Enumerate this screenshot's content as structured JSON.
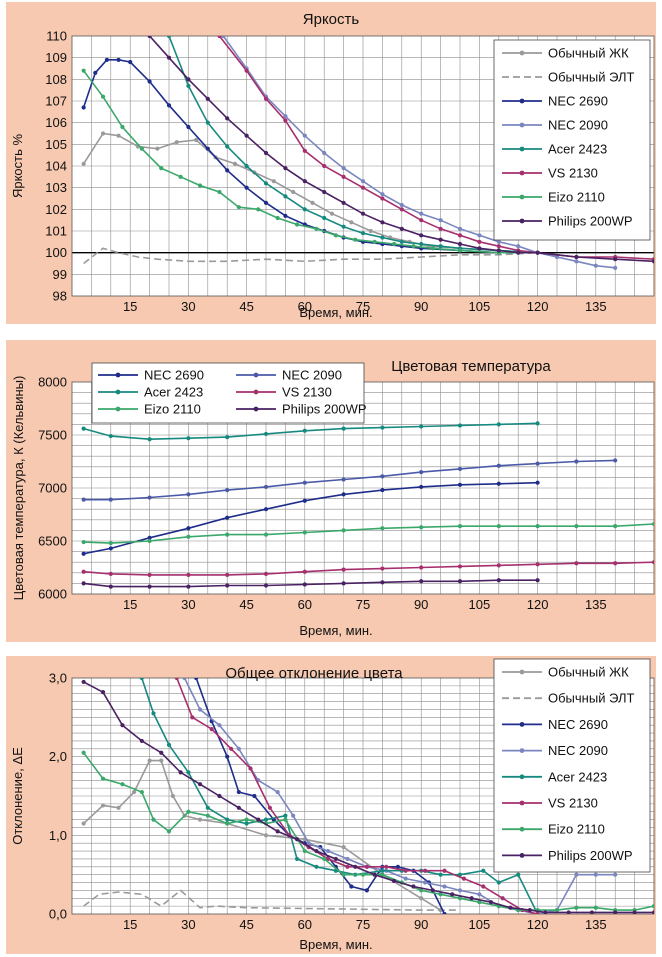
{
  "chart_data": [
    {
      "type": "line",
      "title": "Яркость",
      "xlabel": "Время, мин.",
      "ylabel": "Яркость %",
      "xlim": [
        0,
        150
      ],
      "ylim": [
        98,
        110
      ],
      "xticks": [
        "15",
        "30",
        "45",
        "60",
        "75",
        "90",
        "105",
        "120",
        "135"
      ],
      "yticks": [
        "98",
        "99",
        "100",
        "101",
        "102",
        "103",
        "104",
        "105",
        "106",
        "107",
        "108",
        "109",
        "110"
      ],
      "reference_line": 100,
      "legend_position": "top-right",
      "series": [
        {
          "name": "Обычный ЖК",
          "color": "#9a9a9a",
          "dash": false,
          "x": [
            3,
            8,
            12,
            17,
            22,
            27,
            32,
            37,
            42,
            47,
            52,
            57,
            62,
            67,
            72,
            77,
            82,
            87,
            92,
            100,
            110,
            120
          ],
          "y": [
            104.1,
            105.5,
            105.4,
            104.9,
            104.8,
            105.1,
            105.2,
            104.4,
            104.1,
            103.7,
            103.3,
            102.8,
            102.3,
            101.8,
            101.4,
            101.0,
            100.7,
            100.5,
            100.3,
            100.2,
            100.1,
            100.0
          ]
        },
        {
          "name": "Обычный ЭЛТ",
          "color": "#9a9a9a",
          "dash": true,
          "x": [
            3,
            8,
            12,
            17,
            22,
            30,
            40,
            50,
            60,
            70,
            80,
            90,
            100,
            110,
            120
          ],
          "y": [
            99.5,
            100.2,
            100.0,
            99.8,
            99.7,
            99.6,
            99.6,
            99.7,
            99.6,
            99.7,
            99.7,
            99.8,
            99.9,
            99.9,
            100.0
          ]
        },
        {
          "name": "NEC 2690",
          "color": "#1f2d8a",
          "dash": false,
          "x": [
            3,
            6,
            9,
            12,
            15,
            20,
            25,
            30,
            35,
            40,
            45,
            50,
            55,
            60,
            65,
            70,
            75,
            80,
            85,
            90,
            100,
            110,
            120
          ],
          "y": [
            106.7,
            108.3,
            108.9,
            108.9,
            108.8,
            107.9,
            106.8,
            105.8,
            104.8,
            103.8,
            103.0,
            102.3,
            101.7,
            101.3,
            101.0,
            100.7,
            100.5,
            100.4,
            100.3,
            100.2,
            100.1,
            100.0,
            100.0
          ]
        },
        {
          "name": "NEC 2090",
          "color": "#7b86c0",
          "dash": false,
          "x": [
            39,
            45,
            50,
            55,
            60,
            65,
            70,
            75,
            80,
            85,
            90,
            95,
            100,
            105,
            110,
            115,
            120,
            125,
            130,
            135,
            140
          ],
          "y": [
            110,
            108.5,
            107.2,
            106.3,
            105.4,
            104.6,
            103.9,
            103.3,
            102.7,
            102.2,
            101.8,
            101.5,
            101.1,
            100.8,
            100.5,
            100.3,
            100.0,
            99.8,
            99.6,
            99.4,
            99.3
          ]
        },
        {
          "name": "Acer 2423",
          "color": "#178a80",
          "dash": false,
          "x": [
            25,
            30,
            35,
            40,
            45,
            50,
            55,
            60,
            65,
            70,
            75,
            80,
            85,
            90,
            95,
            100,
            110,
            120
          ],
          "y": [
            110,
            107.7,
            106.0,
            104.9,
            104.0,
            103.2,
            102.6,
            102.0,
            101.6,
            101.2,
            100.9,
            100.7,
            100.5,
            100.4,
            100.3,
            100.2,
            100.1,
            100.0
          ]
        },
        {
          "name": "VS 2130",
          "color": "#a62f6e",
          "dash": false,
          "x": [
            38,
            45,
            50,
            55,
            60,
            65,
            70,
            75,
            80,
            85,
            90,
            95,
            100,
            105,
            110,
            115,
            120,
            130,
            140,
            150
          ],
          "y": [
            110,
            108.4,
            107.1,
            106.1,
            104.7,
            104.0,
            103.5,
            103.0,
            102.5,
            102.0,
            101.5,
            101.1,
            100.8,
            100.5,
            100.3,
            100.1,
            100.0,
            99.8,
            99.8,
            99.7
          ]
        },
        {
          "name": "Eizo 2110",
          "color": "#3aa86a",
          "dash": false,
          "x": [
            3,
            8,
            13,
            18,
            23,
            28,
            33,
            38,
            43,
            48,
            53,
            58,
            63,
            68,
            73,
            78,
            83,
            88,
            93,
            100,
            110,
            120
          ],
          "y": [
            108.4,
            107.2,
            105.8,
            104.8,
            103.9,
            103.5,
            103.1,
            102.8,
            102.1,
            102.0,
            101.6,
            101.3,
            101.1,
            100.8,
            100.6,
            100.5,
            100.4,
            100.3,
            100.2,
            100.1,
            100.0,
            100.0
          ]
        },
        {
          "name": "Philips 200WP",
          "color": "#4a2163",
          "dash": false,
          "x": [
            20,
            25,
            30,
            35,
            40,
            45,
            50,
            55,
            60,
            65,
            70,
            75,
            80,
            85,
            90,
            95,
            100,
            105,
            110,
            115,
            120,
            130,
            140,
            150
          ],
          "y": [
            110,
            109.0,
            108.0,
            107.1,
            106.2,
            105.4,
            104.6,
            103.9,
            103.3,
            102.8,
            102.3,
            101.8,
            101.4,
            101.1,
            100.8,
            100.6,
            100.4,
            100.2,
            100.1,
            100.0,
            100.0,
            99.8,
            99.7,
            99.6
          ]
        }
      ]
    },
    {
      "type": "line",
      "title": "Цветовая температура",
      "xlabel": "Время, мин.",
      "ylabel": "Цветовая температура, К (Кельвины)",
      "xlim": [
        0,
        150
      ],
      "ylim": [
        6000,
        8000
      ],
      "xticks": [
        "15",
        "30",
        "45",
        "60",
        "75",
        "90",
        "105",
        "120",
        "135"
      ],
      "yticks": [
        "6000",
        "6500",
        "7000",
        "7500",
        "8000"
      ],
      "legend_position": "top-left",
      "series": [
        {
          "name": "NEC 2690",
          "color": "#1f2d8a",
          "x": [
            3,
            10,
            20,
            30,
            40,
            50,
            60,
            70,
            80,
            90,
            100,
            110,
            120
          ],
          "y": [
            6380,
            6430,
            6530,
            6620,
            6720,
            6800,
            6880,
            6940,
            6980,
            7010,
            7030,
            7040,
            7050
          ]
        },
        {
          "name": "NEC 2090",
          "color": "#4b5aa8",
          "x": [
            3,
            10,
            20,
            30,
            40,
            50,
            60,
            70,
            80,
            90,
            100,
            110,
            120,
            130,
            140
          ],
          "y": [
            6890,
            6890,
            6910,
            6940,
            6980,
            7010,
            7050,
            7080,
            7110,
            7150,
            7180,
            7210,
            7230,
            7250,
            7260
          ]
        },
        {
          "name": "Acer 2423",
          "color": "#178a80",
          "x": [
            3,
            10,
            20,
            30,
            40,
            50,
            60,
            70,
            80,
            90,
            100,
            110,
            120
          ],
          "y": [
            7560,
            7490,
            7460,
            7470,
            7480,
            7510,
            7540,
            7560,
            7570,
            7580,
            7590,
            7600,
            7610
          ]
        },
        {
          "name": "VS 2130",
          "color": "#a62f6e",
          "x": [
            3,
            10,
            20,
            30,
            40,
            50,
            60,
            70,
            80,
            90,
            100,
            110,
            120,
            130,
            140,
            150
          ],
          "y": [
            6210,
            6190,
            6180,
            6180,
            6180,
            6190,
            6210,
            6230,
            6240,
            6250,
            6260,
            6270,
            6280,
            6290,
            6290,
            6300
          ]
        },
        {
          "name": "Eizo 2110",
          "color": "#3aa86a",
          "x": [
            3,
            10,
            20,
            30,
            40,
            50,
            60,
            70,
            80,
            90,
            100,
            110,
            120,
            130,
            140,
            150
          ],
          "y": [
            6490,
            6480,
            6500,
            6540,
            6560,
            6560,
            6580,
            6600,
            6620,
            6630,
            6640,
            6640,
            6640,
            6640,
            6640,
            6660
          ]
        },
        {
          "name": "Philips 200WP",
          "color": "#4a2163",
          "x": [
            3,
            10,
            20,
            30,
            40,
            50,
            60,
            70,
            80,
            90,
            100,
            110,
            120
          ],
          "y": [
            6100,
            6070,
            6070,
            6070,
            6080,
            6080,
            6090,
            6100,
            6110,
            6120,
            6120,
            6130,
            6130
          ]
        }
      ]
    },
    {
      "type": "line",
      "title": "Общее отклонение цвета",
      "xlabel": "Время, мин.",
      "ylabel": "Отклонение, ΔE",
      "xlim": [
        0,
        150
      ],
      "ylim": [
        0,
        3
      ],
      "xticks": [
        "15",
        "30",
        "45",
        "60",
        "75",
        "90",
        "105",
        "120",
        "135"
      ],
      "yticks": [
        "0,0",
        "1,0",
        "2,0",
        "3,0"
      ],
      "legend_position": "top-right",
      "series": [
        {
          "name": "Обычный ЖК",
          "color": "#9a9a9a",
          "dash": false,
          "x": [
            3,
            8,
            12,
            16,
            20,
            23,
            26,
            29,
            33,
            40,
            50,
            60,
            70,
            80,
            90,
            95
          ],
          "y": [
            1.15,
            1.38,
            1.35,
            1.55,
            1.95,
            1.95,
            1.5,
            1.25,
            1.2,
            1.15,
            1.0,
            0.95,
            0.85,
            0.5,
            0.2,
            0.05
          ]
        },
        {
          "name": "Обычный ЭЛТ",
          "color": "#9a9a9a",
          "dash": true,
          "x": [
            3,
            7,
            12,
            18,
            23,
            28,
            33,
            37,
            45,
            60,
            75,
            90,
            100
          ],
          "y": [
            0.1,
            0.25,
            0.28,
            0.25,
            0.1,
            0.3,
            0.08,
            0.1,
            0.08,
            0.07,
            0.06,
            0.05,
            0.05
          ]
        },
        {
          "name": "NEC 2690",
          "color": "#1f2d8a",
          "dash": false,
          "x": [
            32,
            36,
            40,
            43,
            47,
            52,
            56,
            60,
            64,
            68,
            72,
            76,
            80,
            84,
            88,
            92,
            96
          ],
          "y": [
            3.0,
            2.45,
            2.0,
            1.55,
            1.5,
            1.2,
            1.0,
            0.9,
            0.85,
            0.6,
            0.35,
            0.3,
            0.6,
            0.6,
            0.55,
            0.4,
            0.0
          ]
        },
        {
          "name": "NEC 2090",
          "color": "#7b86c0",
          "dash": false,
          "x": [
            29,
            33,
            38,
            43,
            48,
            53,
            57,
            61,
            66,
            71,
            76,
            81,
            86,
            91,
            96,
            100,
            105,
            110,
            115,
            120,
            125,
            130,
            135,
            140
          ],
          "y": [
            3.0,
            2.6,
            2.4,
            2.1,
            1.7,
            1.55,
            1.25,
            0.9,
            0.8,
            0.7,
            0.6,
            0.55,
            0.45,
            0.4,
            0.35,
            0.3,
            0.25,
            0.1,
            0.05,
            0.0,
            0.05,
            0.5,
            0.5,
            0.5
          ]
        },
        {
          "name": "Acer 2423",
          "color": "#178a80",
          "dash": false,
          "x": [
            18,
            21,
            25,
            30,
            35,
            40,
            45,
            50,
            55,
            58,
            63,
            68,
            73,
            80,
            85,
            90,
            95,
            100,
            106,
            110,
            115,
            120
          ],
          "y": [
            3.0,
            2.55,
            2.15,
            1.8,
            1.35,
            1.2,
            1.15,
            1.2,
            1.25,
            0.7,
            0.6,
            0.55,
            0.5,
            0.55,
            0.55,
            0.55,
            0.5,
            0.5,
            0.55,
            0.4,
            0.5,
            0.0
          ]
        },
        {
          "name": "VS 2130",
          "color": "#a62f6e",
          "dash": false,
          "x": [
            27,
            31,
            36,
            41,
            46,
            51,
            56,
            61,
            66,
            71,
            76,
            81,
            86,
            91,
            96,
            101,
            106,
            111,
            116,
            120
          ],
          "y": [
            3.0,
            2.5,
            2.35,
            2.1,
            1.85,
            1.35,
            1.0,
            0.85,
            0.7,
            0.6,
            0.6,
            0.6,
            0.55,
            0.55,
            0.55,
            0.45,
            0.35,
            0.2,
            0.05,
            0.0
          ]
        },
        {
          "name": "Eizo 2110",
          "color": "#3aa86a",
          "dash": false,
          "x": [
            3,
            8,
            13,
            18,
            21,
            25,
            30,
            35,
            40,
            45,
            50,
            55,
            60,
            65,
            70,
            75,
            80,
            85,
            90,
            95,
            100,
            105,
            110,
            115,
            120,
            125,
            130,
            135,
            140,
            145,
            150
          ],
          "y": [
            2.05,
            1.72,
            1.65,
            1.55,
            1.2,
            1.05,
            1.3,
            1.25,
            1.15,
            1.2,
            1.15,
            1.2,
            0.8,
            0.7,
            0.5,
            0.5,
            0.5,
            0.4,
            0.3,
            0.25,
            0.2,
            0.15,
            0.1,
            0.05,
            0.05,
            0.05,
            0.08,
            0.08,
            0.05,
            0.05,
            0.1
          ]
        },
        {
          "name": "Philips 200WP",
          "color": "#4a2163",
          "dash": false,
          "x": [
            3,
            8,
            13,
            18,
            23,
            28,
            33,
            38,
            43,
            48,
            53,
            58,
            63,
            68,
            73,
            78,
            83,
            88,
            93,
            98,
            103,
            108,
            113,
            118,
            122,
            128,
            134,
            140,
            145,
            150
          ],
          "y": [
            2.95,
            2.82,
            2.4,
            2.2,
            2.05,
            1.8,
            1.65,
            1.5,
            1.35,
            1.2,
            1.05,
            0.95,
            0.8,
            0.7,
            0.6,
            0.5,
            0.42,
            0.35,
            0.3,
            0.25,
            0.2,
            0.15,
            0.08,
            0.05,
            0.02,
            0.02,
            0.02,
            0.02,
            0.02,
            0.02
          ]
        }
      ]
    }
  ]
}
